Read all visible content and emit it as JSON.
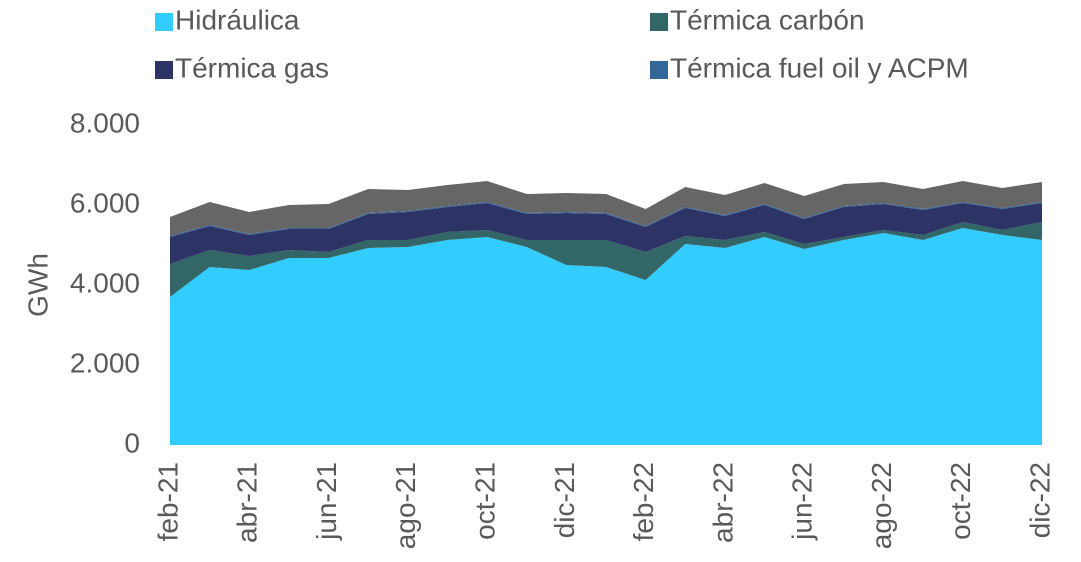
{
  "chart_data": {
    "type": "stacked_area",
    "ylabel": "GWh",
    "categories": [
      "feb-21",
      null,
      "abr-21",
      null,
      "jun-21",
      null,
      "ago-21",
      null,
      "oct-21",
      null,
      "dic-21",
      null,
      "feb-22",
      null,
      "abr-22",
      null,
      "jun-22",
      null,
      "ago-22",
      null,
      "oct-22",
      null,
      "dic-22"
    ],
    "series": [
      {
        "name": "Hidráulica",
        "color": "#33ccff",
        "values": [
          3700,
          4450,
          4375,
          4675,
          4675,
          4925,
          4950,
          5125,
          5200,
          4950,
          4500,
          4450,
          4125,
          5025,
          4925,
          5200,
          4900,
          5125,
          5300,
          5125,
          5425,
          5250,
          5125
        ]
      },
      {
        "name": "Térmica carbón",
        "color": "#336666",
        "values": [
          825,
          425,
          350,
          200,
          150,
          200,
          175,
          200,
          175,
          175,
          625,
          675,
          700,
          200,
          200,
          125,
          125,
          75,
          75,
          125,
          150,
          125,
          450
        ]
      },
      {
        "name": "Térmica gas",
        "color": "#2e3366",
        "values": [
          675,
          600,
          525,
          525,
          575,
          650,
          700,
          625,
          675,
          650,
          675,
          650,
          625,
          700,
          600,
          675,
          625,
          750,
          650,
          625,
          475,
          525,
          475
        ]
      },
      {
        "name": "Térmica fuel oil y ACPM",
        "color": "#336699",
        "values": [
          25,
          25,
          25,
          25,
          25,
          25,
          25,
          25,
          25,
          25,
          25,
          25,
          25,
          25,
          25,
          25,
          25,
          25,
          25,
          25,
          25,
          25,
          25
        ]
      },
      {
        "color": "#666666",
        "values": [
          475,
          575,
          550,
          575,
          600,
          600,
          525,
          525,
          525,
          475,
          475,
          475,
          425,
          500,
          500,
          525,
          550,
          550,
          525,
          500,
          525,
          500,
          500
        ]
      }
    ],
    "ylim": [
      0,
      8000
    ],
    "yticks": [
      0,
      {
        "value": 2000,
        "label": "2.000"
      },
      {
        "value": 4000,
        "label": "4.000"
      },
      {
        "value": 6000,
        "label": "6.000"
      },
      {
        "value": 8000,
        "label": "8.000"
      }
    ]
  }
}
